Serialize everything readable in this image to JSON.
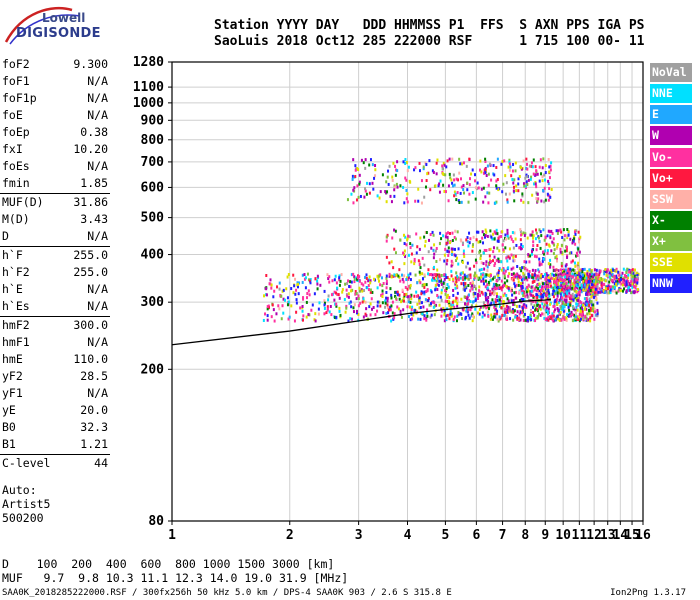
{
  "logo": {
    "line1": "Lowell",
    "line2": "DIGISONDE"
  },
  "header": {
    "line1": "Station YYYY DAY   DDD HHMMSS P1  FFS  S AXN PPS IGA PS",
    "line2": "SaoLuis 2018 Oct12 285 222000 RSF      1 715 100 00- 11"
  },
  "params": [
    {
      "label": "foF2",
      "value": "9.300"
    },
    {
      "label": "foF1",
      "value": "N/A"
    },
    {
      "label": "foF1p",
      "value": "N/A"
    },
    {
      "label": "foE",
      "value": "N/A"
    },
    {
      "label": "foEp",
      "value": "0.38"
    },
    {
      "label": "fxI",
      "value": "10.20"
    },
    {
      "label": "foEs",
      "value": "N/A"
    },
    {
      "label": "fmin",
      "value": "1.85"
    },
    {
      "label": "MUF(D)",
      "value": "31.86"
    },
    {
      "label": "M(D)",
      "value": "3.43"
    },
    {
      "label": "D",
      "value": "N/A"
    },
    {
      "label": "h`F",
      "value": "255.0"
    },
    {
      "label": "h`F2",
      "value": "255.0"
    },
    {
      "label": "h`E",
      "value": "N/A"
    },
    {
      "label": "h`Es",
      "value": "N/A"
    },
    {
      "label": "hmF2",
      "value": "300.0"
    },
    {
      "label": "hmF1",
      "value": "N/A"
    },
    {
      "label": "hmE",
      "value": "110.0"
    },
    {
      "label": "yF2",
      "value": "28.5"
    },
    {
      "label": "yF1",
      "value": "N/A"
    },
    {
      "label": "yE",
      "value": "20.0"
    },
    {
      "label": "B0",
      "value": "32.3"
    },
    {
      "label": "B1",
      "value": "1.21"
    },
    {
      "label": "C-level",
      "value": "44"
    }
  ],
  "auto": {
    "line1": "Auto:",
    "line2": "Artist5",
    "line3": "500200"
  },
  "legend": [
    {
      "label": "NoVal",
      "color": "#a0a0a0"
    },
    {
      "label": "NNE",
      "color": "#00e0ff"
    },
    {
      "label": "E",
      "color": "#20a8ff"
    },
    {
      "label": "W",
      "color": "#b000b0"
    },
    {
      "label": "Vo-",
      "color": "#ff30a0"
    },
    {
      "label": "Vo+",
      "color": "#ff1840"
    },
    {
      "label": "SSW",
      "color": "#ffb0a8"
    },
    {
      "label": "X-",
      "color": "#008000"
    },
    {
      "label": "X+",
      "color": "#80c040"
    },
    {
      "label": "SSE",
      "color": "#e0e000"
    },
    {
      "label": "NNW",
      "color": "#2020ff"
    }
  ],
  "dmuf": {
    "d_line": "D    100  200  400  600  800 1000 1500 3000 [km]",
    "muf_line": "MUF   9.7  9.8 10.3 11.1 12.3 14.0 19.0 31.9 [MHz]"
  },
  "footer": "SAA0K_2018285222000.RSF / 300fx256h 50 kHz 5.0 km / DPS-4 SAA0K 903 / 2.6 S 315.8 E",
  "version": "Ion2Png 1.3.17",
  "chart_data": {
    "type": "scatter",
    "xlim": [
      1,
      16
    ],
    "ylim": [
      80,
      1280
    ],
    "yscale": "log",
    "x_ticks": [
      1,
      2,
      3,
      4,
      5,
      6,
      7,
      8,
      9,
      10,
      11,
      12,
      13,
      14,
      15,
      16
    ],
    "y_ticks": [
      80,
      200,
      300,
      400,
      500,
      600,
      700,
      800,
      900,
      1000,
      1100,
      1280
    ],
    "grid": true,
    "legend_placement": "right",
    "clusters": [
      {
        "name": "F2 trace",
        "x": [
          1.7,
          12.2
        ],
        "y": [
          270,
          360
        ],
        "density": 1700
      },
      {
        "name": "F2 spread",
        "x": [
          9.4,
          15.5
        ],
        "y": [
          320,
          370
        ],
        "density": 500
      },
      {
        "name": "F2 upper",
        "x": [
          3.5,
          11.0
        ],
        "y": [
          350,
          470
        ],
        "density": 500
      },
      {
        "name": "2F2 echoes",
        "x": [
          2.8,
          9.3
        ],
        "y": [
          550,
          720
        ],
        "density": 350
      }
    ],
    "profile_curve": {
      "x": [
        1.0,
        2.0,
        3.0,
        4.0,
        5.0,
        6.0,
        7.0,
        8.0,
        9.0,
        9.3
      ],
      "y": [
        232,
        252,
        268,
        280,
        287,
        292,
        297,
        302,
        304,
        305
      ]
    }
  }
}
